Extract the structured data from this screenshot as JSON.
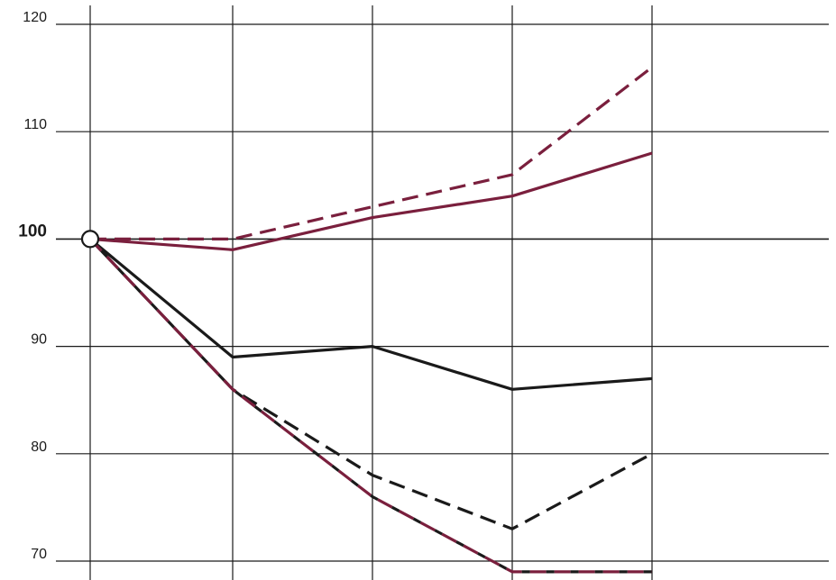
{
  "chart_data": {
    "type": "line",
    "title": "",
    "xlabel": "",
    "ylabel": "",
    "x": [
      0,
      1,
      2,
      3,
      4
    ],
    "ylim": [
      69,
      122
    ],
    "yticks": [
      {
        "label": "120",
        "value": 120,
        "major": false
      },
      {
        "label": "110",
        "value": 110,
        "major": false
      },
      {
        "label": "100",
        "value": 100,
        "major": true
      },
      {
        "label": "90",
        "value": 90,
        "major": false
      },
      {
        "label": "80",
        "value": 80,
        "major": false
      },
      {
        "label": "70",
        "value": 70,
        "major": false
      }
    ],
    "grid": true,
    "origin_marker": {
      "x": 0,
      "y": 100
    },
    "series": [
      {
        "color": "#7a1f3d",
        "dash": false,
        "values": [
          100,
          99,
          102,
          104,
          108
        ]
      },
      {
        "color": "#7a1f3d",
        "dash": true,
        "values": [
          100,
          100,
          103,
          106,
          116
        ]
      },
      {
        "color": "#1a1a1a",
        "dash": false,
        "values": [
          100,
          89,
          90,
          86,
          87
        ]
      },
      {
        "color": "#1a1a1a",
        "dash": true,
        "values": [
          100,
          86,
          78,
          73,
          80
        ]
      },
      {
        "color": "#7a1f3d",
        "dash": true,
        "values": [
          100,
          86,
          76,
          69,
          69
        ],
        "mixed_with": "#1a1a1a"
      }
    ]
  }
}
